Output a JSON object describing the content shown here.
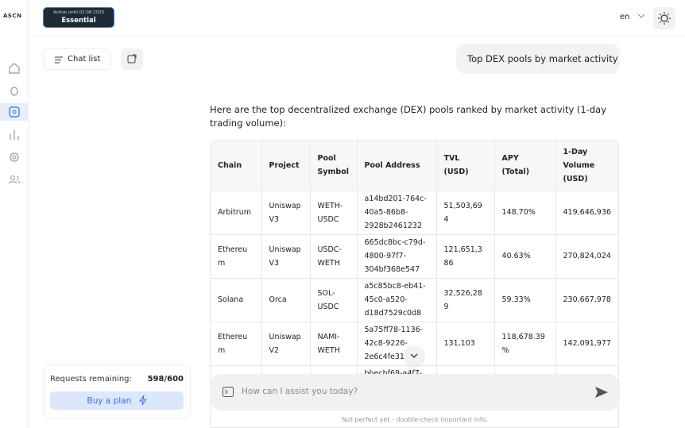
{
  "logo": "ASCN",
  "subscription": {
    "status": "Active until 02.08.2025",
    "plan": "Essential"
  },
  "header": {
    "language": "en"
  },
  "sidebar": {
    "chat_list": "Chat list",
    "requests_label": "Requests remaining:",
    "requests_value": "598/600",
    "buy_button": "Buy a plan"
  },
  "user_message": "Top DEX pools by market activity",
  "assistant_message": "Here are the top decentralized exchange (DEX) pools ranked by market activity (1-day trading volume):",
  "table": {
    "headers": [
      "Chain",
      "Project",
      "Pool Symbol",
      "Pool Address",
      "TVL (USD)",
      "APY (Total)",
      "1-Day Volume (USD)"
    ],
    "rows": [
      [
        "Arbitrum",
        "Uniswap V3",
        "WETH-USDC",
        "a14bd201-764c-40a5-86b8-2928b2461232",
        "51,503,694",
        "148.70%",
        "419,646,936"
      ],
      [
        "Ethereum",
        "Uniswap V3",
        "USDC-WETH",
        "665dc8bc-c79d-4800-97f7-304bf368e547",
        "121,651,386",
        "40.63%",
        "270,824,024"
      ],
      [
        "Solana",
        "Orca",
        "SOL-USDC",
        "a5c85bc8-eb41-45c0-a520-d18d7529c0d8",
        "32,526,289",
        "59.33%",
        "230,667,978"
      ],
      [
        "Ethereum",
        "Uniswap V2",
        "NAMI-WETH",
        "5a75ff78-1136-42c8-9226-2e6c4fe31c",
        "131,103",
        "118,678.39%",
        "142,091,977"
      ]
    ],
    "partial_row_address": "bbecbf69-a4f7-"
  },
  "input": {
    "placeholder": "How can I assist you today?"
  },
  "footer": "Not perfect yet - double-check important info."
}
